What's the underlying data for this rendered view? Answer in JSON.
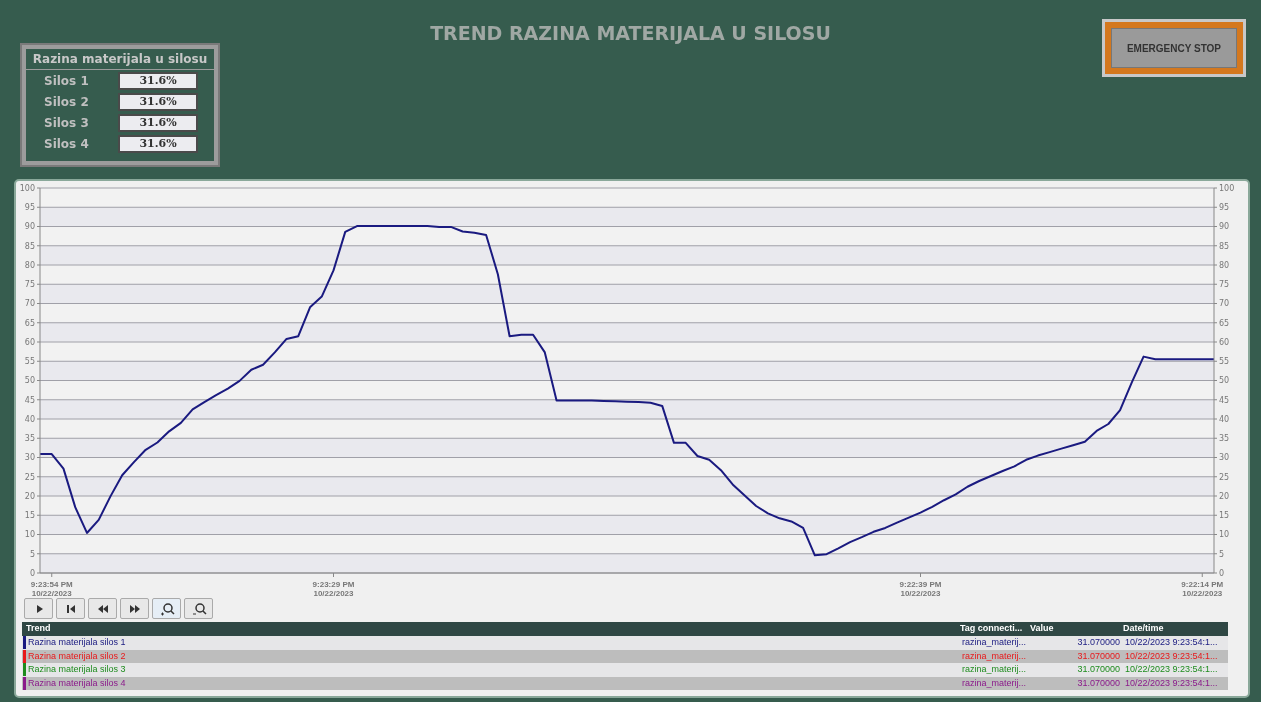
{
  "chart_data": [
    {
      "type": "other",
      "title": "Razina materijala u silosu",
      "categories": [
        "Silos 1",
        "Silos 2",
        "Silos 3",
        "Silos 4"
      ],
      "value_labels": [
        "31.6%",
        "31.6%",
        "31.6%",
        "31.6%"
      ],
      "annotations": [
        "EMERGENCY STOP"
      ]
    },
    {
      "type": "line",
      "title": "TREND RAZINA MATERIJALA U SILOSU",
      "categories": [
        null,
        "9:23:54 PM\n10/22/2023",
        null,
        null,
        null,
        null,
        null,
        null,
        null,
        null,
        null,
        null,
        null,
        null,
        null,
        null,
        null,
        null,
        null,
        null,
        null,
        null,
        null,
        null,
        null,
        "9:23:29 PM\n10/22/2023",
        null,
        null,
        null,
        null,
        null,
        null,
        null,
        null,
        null,
        null,
        null,
        null,
        null,
        null,
        null,
        null,
        null,
        null,
        null,
        null,
        null,
        null,
        null,
        null,
        null,
        null,
        null,
        null,
        null,
        null,
        null,
        null,
        null,
        null,
        null,
        null,
        null,
        null,
        null,
        null,
        null,
        null,
        null,
        null,
        null,
        null,
        null,
        null,
        null,
        "9:22:39 PM\n10/22/2023",
        null,
        null,
        null,
        null,
        null,
        null,
        null,
        null,
        null,
        null,
        null,
        null,
        null,
        null,
        null,
        null,
        null,
        null,
        null,
        null,
        null,
        null,
        null,
        "9:22:14 PM\n10/22/2023",
        null
      ],
      "series": [
        {
          "color": "#1a1a80",
          "values": [
            30.9,
            30.9,
            27.1,
            17.1,
            10.4,
            13.8,
            19.9,
            25.4,
            28.8,
            32.0,
            33.9,
            36.8,
            39.0,
            42.5,
            44.4,
            46.2,
            47.9,
            49.9,
            52.8,
            54.1,
            57.3,
            60.8,
            61.5,
            69.0,
            71.8,
            78.6,
            88.6,
            90.1,
            90.1,
            90.1,
            90.1,
            90.1,
            90.1,
            90.1,
            89.9,
            89.9,
            88.7,
            88.4,
            87.8,
            77.6,
            61.5,
            61.9,
            61.9,
            57.3,
            44.8,
            44.8,
            44.8,
            44.8,
            44.7,
            44.6,
            44.5,
            44.4,
            44.2,
            43.4,
            33.8,
            33.8,
            30.4,
            29.4,
            26.7,
            23.0,
            20.2,
            17.4,
            15.5,
            14.2,
            13.4,
            11.7,
            4.6,
            4.9,
            6.4,
            8.0,
            9.3,
            10.7,
            11.7,
            13.1,
            14.4,
            15.7,
            17.2,
            18.9,
            20.4,
            22.4,
            23.9,
            25.2,
            26.5,
            27.7,
            29.4,
            30.5,
            31.4,
            32.3,
            33.2,
            34.1,
            36.9,
            38.7,
            42.3,
            49.5,
            56.2,
            55.5,
            55.5,
            55.5,
            55.5,
            55.5,
            55.5
          ]
        }
      ],
      "ylim": [
        0,
        100
      ],
      "yticks": [
        0,
        5,
        10,
        15,
        20,
        25,
        30,
        35,
        40,
        45,
        50,
        55,
        60,
        65,
        70,
        75,
        80,
        85,
        90,
        95,
        100
      ],
      "y2lim": [
        0,
        100
      ],
      "y2ticks": [
        0,
        5,
        10,
        15,
        20,
        25,
        30,
        35,
        40,
        45,
        50,
        55,
        60,
        65,
        70,
        75,
        80,
        85,
        90,
        95,
        100
      ],
      "grid": "y"
    },
    {
      "type": "other",
      "categories": [
        "Razina materijala silos 1",
        "Razina materijala silos 2",
        "Razina materijala silos 3",
        "Razina materijala silos 4"
      ],
      "colors": [
        "#1a1a80",
        "#e8191b",
        "#1e8c1e",
        "#8b1a8b"
      ],
      "annotations": [
        "Trend",
        "Tag connecti...",
        "Value",
        "Date/time"
      ],
      "cell_labels": [
        [
          "razina_materij...",
          "31.070000",
          "10/22/2023 9:23:54:1..."
        ],
        [
          "razina_materij...",
          "31.070000",
          "10/22/2023 9:23:54:1..."
        ],
        [
          "razina_materij...",
          "31.070000",
          "10/22/2023 9:23:54:1..."
        ],
        [
          "razina_materij...",
          "31.070000",
          "10/22/2023 9:23:54:1..."
        ]
      ]
    }
  ]
}
